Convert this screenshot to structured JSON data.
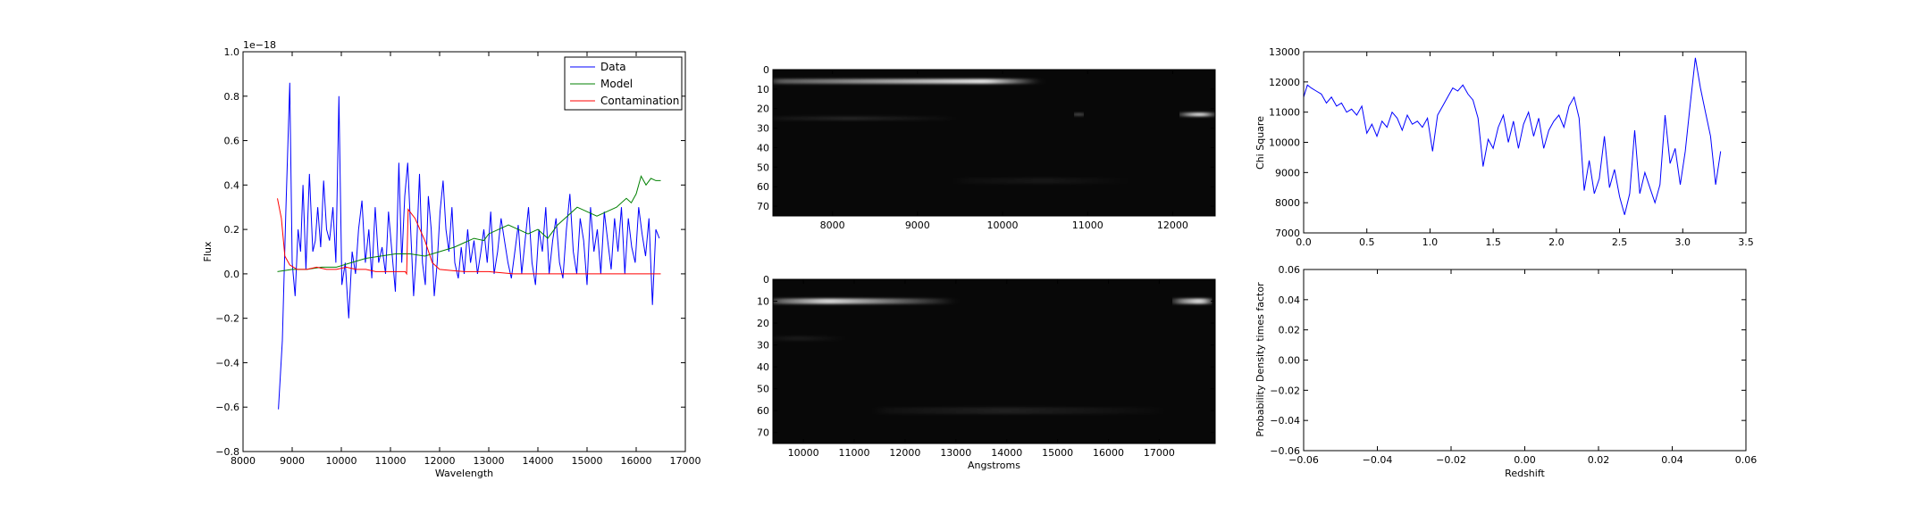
{
  "chart_data": [
    {
      "id": "spectrum",
      "type": "line",
      "xlabel": "Wavelength",
      "ylabel": "Flux",
      "xlim": [
        8000,
        17000
      ],
      "ylim": [
        -0.8,
        1.0
      ],
      "offset_text": "1e−18",
      "x_ticks": [
        8000,
        9000,
        10000,
        11000,
        12000,
        13000,
        14000,
        15000,
        16000,
        17000
      ],
      "y_ticks": [
        -0.8,
        -0.6,
        -0.4,
        -0.2,
        0.0,
        0.2,
        0.4,
        0.6,
        0.8,
        1.0
      ],
      "grid": false,
      "legend_position": "top-right",
      "series": [
        {
          "name": "Data",
          "color": "#0000ff",
          "x": [
            8720,
            8800,
            8870,
            8950,
            9000,
            9060,
            9120,
            9170,
            9220,
            9280,
            9350,
            9420,
            9470,
            9520,
            9580,
            9640,
            9700,
            9760,
            9830,
            9890,
            9950,
            10010,
            10080,
            10150,
            10220,
            10290,
            10350,
            10420,
            10490,
            10560,
            10620,
            10690,
            10760,
            10830,
            10900,
            10960,
            11030,
            11100,
            11170,
            11230,
            11290,
            11350,
            11410,
            11470,
            11530,
            11590,
            11650,
            11710,
            11770,
            11830,
            11890,
            11950,
            12010,
            12070,
            12130,
            12190,
            12250,
            12310,
            12380,
            12440,
            12500,
            12570,
            12630,
            12700,
            12770,
            12840,
            12900,
            12970,
            13040,
            13110,
            13180,
            13250,
            13320,
            13390,
            13460,
            13530,
            13600,
            13670,
            13740,
            13810,
            13880,
            13950,
            14020,
            14090,
            14160,
            14230,
            14300,
            14370,
            14440,
            14510,
            14580,
            14650,
            14720,
            14790,
            14860,
            14930,
            15000,
            15070,
            15140,
            15210,
            15280,
            15350,
            15420,
            15490,
            15560,
            15630,
            15700,
            15770,
            15840,
            15910,
            15980,
            16050,
            16120,
            16190,
            16260,
            16330,
            16400,
            16470
          ],
          "y": [
            -0.61,
            -0.3,
            0.28,
            0.86,
            0.05,
            -0.1,
            0.2,
            0.1,
            0.4,
            0.02,
            0.45,
            0.1,
            0.15,
            0.3,
            0.12,
            0.42,
            0.2,
            0.15,
            0.3,
            0.05,
            0.8,
            -0.05,
            0.05,
            -0.2,
            0.1,
            0.0,
            0.2,
            0.33,
            0.05,
            0.2,
            -0.02,
            0.3,
            0.05,
            0.12,
            0.0,
            0.28,
            0.1,
            -0.08,
            0.5,
            0.05,
            0.35,
            0.5,
            0.2,
            -0.1,
            0.1,
            0.45,
            0.05,
            -0.05,
            0.35,
            0.2,
            -0.1,
            0.05,
            0.28,
            0.42,
            0.2,
            0.1,
            0.3,
            0.05,
            -0.02,
            0.12,
            0.0,
            0.2,
            0.05,
            0.15,
            0.0,
            0.1,
            0.2,
            0.05,
            0.28,
            0.0,
            0.1,
            0.25,
            0.15,
            0.05,
            -0.02,
            0.1,
            0.22,
            0.0,
            0.15,
            0.3,
            0.05,
            -0.05,
            0.2,
            0.1,
            0.3,
            0.0,
            0.15,
            0.25,
            0.05,
            -0.02,
            0.2,
            0.36,
            0.1,
            0.0,
            0.25,
            0.15,
            -0.05,
            0.3,
            0.1,
            0.2,
            0.0,
            0.28,
            0.15,
            0.02,
            0.25,
            0.1,
            0.3,
            0.0,
            0.25,
            0.12,
            0.05,
            0.3,
            0.18,
            0.08,
            0.25,
            -0.14,
            0.2,
            0.16
          ]
        },
        {
          "name": "Model",
          "color": "#008000",
          "x": [
            8700,
            9000,
            9300,
            9600,
            9900,
            10200,
            10500,
            10800,
            11100,
            11400,
            11700,
            12000,
            12300,
            12500,
            12700,
            12900,
            13000,
            13200,
            13400,
            13600,
            13800,
            14000,
            14200,
            14400,
            14600,
            14800,
            15000,
            15200,
            15400,
            15600,
            15800,
            15900,
            16000,
            16100,
            16200,
            16300,
            16400,
            16500
          ],
          "y": [
            0.01,
            0.02,
            0.02,
            0.03,
            0.03,
            0.05,
            0.07,
            0.08,
            0.09,
            0.09,
            0.08,
            0.1,
            0.12,
            0.14,
            0.16,
            0.15,
            0.18,
            0.2,
            0.22,
            0.2,
            0.18,
            0.2,
            0.16,
            0.22,
            0.26,
            0.3,
            0.28,
            0.26,
            0.28,
            0.3,
            0.34,
            0.32,
            0.36,
            0.44,
            0.4,
            0.43,
            0.42,
            0.42
          ]
        },
        {
          "name": "Contamination",
          "color": "#ff0000",
          "x": [
            8700,
            8780,
            8850,
            8950,
            9100,
            9300,
            9500,
            9700,
            9900,
            10100,
            10300,
            10500,
            10700,
            10900,
            11100,
            11300,
            11330,
            11360,
            11500,
            11700,
            11850,
            12000,
            12500,
            13000,
            13500,
            14000,
            15000,
            16000,
            16500
          ],
          "y": [
            0.34,
            0.25,
            0.08,
            0.04,
            0.02,
            0.02,
            0.03,
            0.02,
            0.02,
            0.03,
            0.02,
            0.02,
            0.01,
            0.01,
            0.01,
            0.01,
            0.0,
            0.29,
            0.25,
            0.15,
            0.05,
            0.02,
            0.01,
            0.01,
            0.0,
            0.0,
            0.0,
            0.0,
            0.0
          ]
        }
      ]
    },
    {
      "id": "image2d_top",
      "type": "heatmap",
      "xlabel": "",
      "ylabel": "",
      "xlim": [
        7300,
        12500
      ],
      "ylim": [
        75,
        0
      ],
      "x_ticks": [
        8000,
        9000,
        10000,
        11000,
        12000
      ],
      "y_ticks": [
        0,
        10,
        20,
        30,
        40,
        50,
        60,
        70
      ],
      "colormap": "gray",
      "features": [
        {
          "x0": 7300,
          "x1": 10400,
          "row": 6,
          "width": 2.5,
          "peak_x": 9800,
          "intensity": 0.9
        },
        {
          "x0": 12100,
          "x1": 12500,
          "row": 23,
          "width": 2.0,
          "peak_x": 12350,
          "intensity": 1.0
        },
        {
          "x0": 10850,
          "x1": 10950,
          "row": 23,
          "width": 1.5,
          "peak_x": 10900,
          "intensity": 0.7
        },
        {
          "x0": 7300,
          "x1": 9400,
          "row": 25,
          "width": 2.0,
          "peak_x": 8200,
          "intensity": 0.12
        },
        {
          "x0": 9500,
          "x1": 11500,
          "row": 57,
          "width": 3.0,
          "peak_x": 10500,
          "intensity": 0.06
        }
      ]
    },
    {
      "id": "image2d_bottom",
      "type": "heatmap",
      "xlabel": "Angstroms",
      "ylabel": "",
      "xlim": [
        9400,
        18100
      ],
      "ylim": [
        75,
        0
      ],
      "x_ticks": [
        10000,
        11000,
        12000,
        13000,
        14000,
        15000,
        16000,
        17000
      ],
      "y_ticks": [
        0,
        10,
        20,
        30,
        40,
        50,
        60,
        70
      ],
      "colormap": "gray",
      "features": [
        {
          "x0": 9400,
          "x1": 12900,
          "row": 10,
          "width": 2.5,
          "peak_x": 10500,
          "intensity": 0.85
        },
        {
          "x0": 17300,
          "x1": 18000,
          "row": 10,
          "width": 2.5,
          "peak_x": 17900,
          "intensity": 1.0
        },
        {
          "x0": 11500,
          "x1": 17000,
          "row": 60,
          "width": 3.0,
          "peak_x": 14000,
          "intensity": 0.1
        },
        {
          "x0": 9400,
          "x1": 10800,
          "row": 27,
          "width": 2.0,
          "peak_x": 9900,
          "intensity": 0.08
        }
      ]
    },
    {
      "id": "chisq",
      "type": "line",
      "xlabel": "",
      "ylabel": "Chi Square",
      "xlim": [
        0.0,
        3.5
      ],
      "ylim": [
        7000,
        13000
      ],
      "x_ticks": [
        0.0,
        0.5,
        1.0,
        1.5,
        2.0,
        2.5,
        3.0,
        3.5
      ],
      "y_ticks": [
        7000,
        8000,
        9000,
        10000,
        11000,
        12000,
        13000
      ],
      "grid": false,
      "series": [
        {
          "color": "#0000ff",
          "x": [
            0.0,
            0.03,
            0.06,
            0.1,
            0.14,
            0.18,
            0.22,
            0.26,
            0.3,
            0.34,
            0.38,
            0.42,
            0.46,
            0.5,
            0.54,
            0.58,
            0.62,
            0.66,
            0.7,
            0.74,
            0.78,
            0.82,
            0.86,
            0.9,
            0.94,
            0.98,
            1.02,
            1.06,
            1.1,
            1.14,
            1.18,
            1.22,
            1.26,
            1.3,
            1.34,
            1.38,
            1.42,
            1.46,
            1.5,
            1.54,
            1.58,
            1.62,
            1.66,
            1.7,
            1.74,
            1.78,
            1.82,
            1.86,
            1.9,
            1.94,
            1.98,
            2.02,
            2.06,
            2.1,
            2.14,
            2.18,
            2.22,
            2.26,
            2.3,
            2.34,
            2.38,
            2.42,
            2.46,
            2.5,
            2.54,
            2.58,
            2.62,
            2.66,
            2.7,
            2.74,
            2.78,
            2.82,
            2.86,
            2.9,
            2.94,
            2.98,
            3.02,
            3.06,
            3.1,
            3.14,
            3.18,
            3.22,
            3.26,
            3.3
          ],
          "y": [
            11500,
            11900,
            11800,
            11700,
            11600,
            11300,
            11500,
            11200,
            11300,
            11000,
            11100,
            10900,
            11200,
            10300,
            10600,
            10200,
            10700,
            10500,
            11000,
            10800,
            10400,
            10900,
            10600,
            10700,
            10500,
            10800,
            9700,
            10900,
            11200,
            11500,
            11800,
            11700,
            11900,
            11600,
            11400,
            10800,
            9200,
            10100,
            9800,
            10500,
            10900,
            10000,
            10700,
            9800,
            10600,
            11000,
            10200,
            10800,
            9800,
            10400,
            10700,
            10900,
            10500,
            11200,
            11500,
            10800,
            8400,
            9400,
            8300,
            8800,
            10200,
            8500,
            9100,
            8200,
            7600,
            8300,
            10400,
            8300,
            9000,
            8500,
            8000,
            8600,
            10900,
            9300,
            9800,
            8600,
            9700,
            11300,
            12800,
            11800,
            11000,
            10200,
            8600,
            9700
          ]
        }
      ]
    },
    {
      "id": "pdf",
      "type": "line",
      "xlabel": "Redshift",
      "ylabel": "Probability Density times factor",
      "xlim": [
        -0.06,
        0.06
      ],
      "ylim": [
        -0.06,
        0.06
      ],
      "x_ticks": [
        -0.06,
        -0.04,
        -0.02,
        0.0,
        0.02,
        0.04,
        0.06
      ],
      "y_ticks": [
        -0.06,
        -0.04,
        -0.02,
        0.0,
        0.02,
        0.04,
        0.06
      ],
      "grid": false,
      "series": []
    }
  ]
}
